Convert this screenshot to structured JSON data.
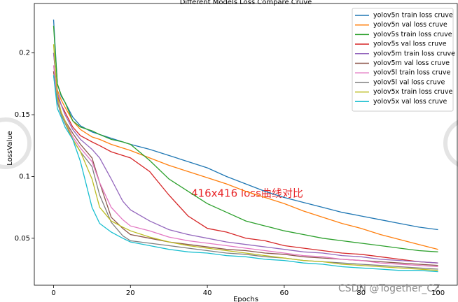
{
  "chart_data": {
    "type": "line",
    "title": "Different Models Loss Compare Cruve",
    "x_label": "Epochs",
    "y_label": "LossValue",
    "annotation": "416x416 loss曲线对比",
    "watermark": "CSDN @Together_CZ",
    "legend": "upper right",
    "xlim": [
      -5,
      105
    ],
    "ylim": [
      0.012,
      0.24
    ],
    "xticks": [
      0,
      20,
      40,
      60,
      80,
      100
    ],
    "yticks": [
      0.05,
      0.1,
      0.15,
      0.2
    ],
    "x": [
      0,
      1,
      2,
      3,
      5,
      7,
      10,
      12,
      15,
      18,
      20,
      25,
      30,
      35,
      40,
      45,
      50,
      55,
      60,
      65,
      70,
      75,
      80,
      85,
      90,
      95,
      100
    ],
    "series": [
      {
        "name": "yolov5n train loss cruve",
        "color": "#1f77b4",
        "values": [
          0.227,
          0.175,
          0.165,
          0.16,
          0.148,
          0.141,
          0.136,
          0.134,
          0.131,
          0.128,
          0.126,
          0.122,
          0.117,
          0.112,
          0.107,
          0.1,
          0.094,
          0.088,
          0.083,
          0.079,
          0.075,
          0.071,
          0.068,
          0.065,
          0.062,
          0.059,
          0.057
        ]
      },
      {
        "name": "yolov5n val loss cruve",
        "color": "#ff7f0e",
        "values": [
          0.2,
          0.17,
          0.162,
          0.156,
          0.145,
          0.138,
          0.132,
          0.13,
          0.126,
          0.123,
          0.121,
          0.115,
          0.109,
          0.104,
          0.099,
          0.094,
          0.088,
          0.083,
          0.078,
          0.072,
          0.067,
          0.062,
          0.058,
          0.053,
          0.049,
          0.045,
          0.041
        ]
      },
      {
        "name": "yolov5s train loss cruve",
        "color": "#2ca02c",
        "values": [
          0.222,
          0.175,
          0.166,
          0.16,
          0.145,
          0.14,
          0.137,
          0.134,
          0.13,
          0.128,
          0.126,
          0.113,
          0.098,
          0.088,
          0.078,
          0.071,
          0.064,
          0.06,
          0.056,
          0.053,
          0.05,
          0.048,
          0.046,
          0.044,
          0.042,
          0.04,
          0.039
        ]
      },
      {
        "name": "yolov5s val loss cruve",
        "color": "#d62728",
        "values": [
          0.185,
          0.165,
          0.158,
          0.152,
          0.14,
          0.133,
          0.128,
          0.125,
          0.12,
          0.117,
          0.115,
          0.104,
          0.085,
          0.068,
          0.058,
          0.055,
          0.05,
          0.048,
          0.044,
          0.042,
          0.04,
          0.038,
          0.037,
          0.035,
          0.033,
          0.031,
          0.03
        ]
      },
      {
        "name": "yolov5m train loss cruve",
        "color": "#9467bd",
        "values": [
          0.2,
          0.168,
          0.158,
          0.15,
          0.138,
          0.13,
          0.122,
          0.115,
          0.098,
          0.08,
          0.073,
          0.064,
          0.057,
          0.053,
          0.05,
          0.047,
          0.045,
          0.043,
          0.041,
          0.039,
          0.038,
          0.036,
          0.035,
          0.033,
          0.032,
          0.031,
          0.03
        ]
      },
      {
        "name": "yolov5m val loss cruve",
        "color": "#8c564b",
        "values": [
          0.185,
          0.16,
          0.152,
          0.145,
          0.135,
          0.126,
          0.115,
          0.095,
          0.067,
          0.058,
          0.053,
          0.05,
          0.047,
          0.045,
          0.043,
          0.041,
          0.04,
          0.038,
          0.037,
          0.035,
          0.034,
          0.033,
          0.032,
          0.031,
          0.03,
          0.029,
          0.028
        ]
      },
      {
        "name": "yolov5l train loss cruve",
        "color": "#e377c2",
        "values": [
          0.19,
          0.163,
          0.152,
          0.145,
          0.132,
          0.123,
          0.112,
          0.095,
          0.075,
          0.065,
          0.06,
          0.056,
          0.051,
          0.048,
          0.046,
          0.044,
          0.042,
          0.04,
          0.038,
          0.036,
          0.035,
          0.033,
          0.032,
          0.03,
          0.029,
          0.028,
          0.027
        ]
      },
      {
        "name": "yolov5l val loss cruve",
        "color": "#7f7f7f",
        "values": [
          0.182,
          0.16,
          0.15,
          0.143,
          0.13,
          0.12,
          0.108,
          0.085,
          0.063,
          0.052,
          0.048,
          0.046,
          0.044,
          0.042,
          0.04,
          0.038,
          0.037,
          0.035,
          0.034,
          0.032,
          0.031,
          0.03,
          0.029,
          0.028,
          0.027,
          0.026,
          0.025
        ]
      },
      {
        "name": "yolov5x train loss cruve",
        "color": "#bcbd22",
        "values": [
          0.207,
          0.165,
          0.152,
          0.145,
          0.13,
          0.12,
          0.098,
          0.075,
          0.064,
          0.059,
          0.056,
          0.051,
          0.047,
          0.044,
          0.042,
          0.04,
          0.038,
          0.036,
          0.034,
          0.032,
          0.031,
          0.029,
          0.028,
          0.027,
          0.026,
          0.025,
          0.024
        ]
      },
      {
        "name": "yolov5x val loss cruve",
        "color": "#17becf",
        "values": [
          0.182,
          0.155,
          0.148,
          0.14,
          0.13,
          0.112,
          0.075,
          0.062,
          0.055,
          0.05,
          0.047,
          0.044,
          0.041,
          0.039,
          0.038,
          0.036,
          0.035,
          0.033,
          0.032,
          0.03,
          0.029,
          0.027,
          0.026,
          0.025,
          0.024,
          0.024,
          0.023
        ]
      }
    ]
  }
}
